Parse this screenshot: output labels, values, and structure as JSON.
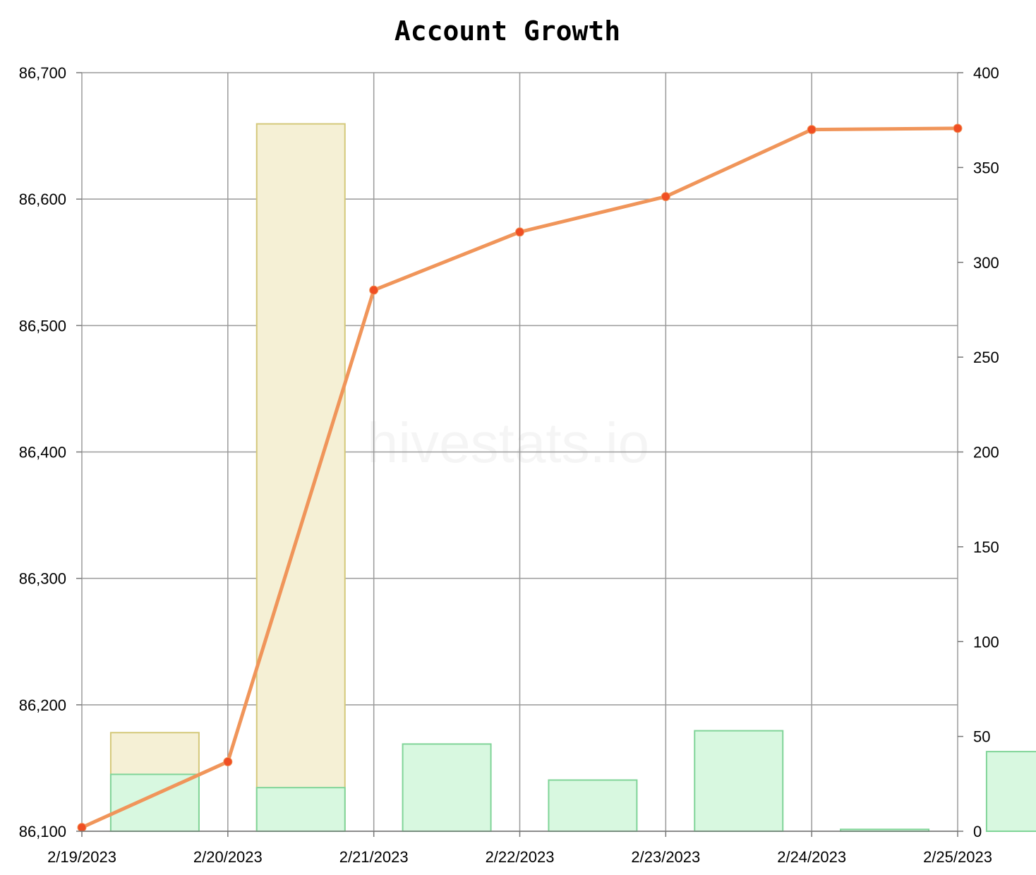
{
  "chart_data": {
    "type": "bar+line",
    "title": "Account Growth",
    "watermark": "hivestats.io",
    "categories": [
      "2/19/2023",
      "2/20/2023",
      "2/21/2023",
      "2/22/2023",
      "2/23/2023",
      "2/24/2023",
      "2/25/2023"
    ],
    "y_left": {
      "range": [
        86100,
        86700
      ],
      "ticks": [
        "86,100",
        "86,200",
        "86,300",
        "86,400",
        "86,500",
        "86,600",
        "86,700"
      ]
    },
    "y_right": {
      "range": [
        0,
        400
      ],
      "ticks": [
        "0",
        "50",
        "100",
        "150",
        "200",
        "250",
        "300",
        "350",
        "400"
      ]
    },
    "grid": true,
    "series": [
      {
        "kind": "line",
        "axis": "left",
        "color": "#f0955a",
        "marker_color": "#f04e23",
        "x": [
          "2/19/2023",
          "2/20/2023",
          "2/21/2023",
          "2/22/2023",
          "2/23/2023",
          "2/24/2023",
          "2/25/2023"
        ],
        "values": [
          86103,
          86155,
          86528,
          86574,
          86602,
          86655,
          86656
        ]
      },
      {
        "kind": "bar",
        "axis": "right",
        "fill": "#f5f0d5",
        "stroke": "#d4c87a",
        "x": [
          "2/19/2023",
          "2/20/2023"
        ],
        "values": [
          52,
          373
        ]
      },
      {
        "kind": "bar",
        "axis": "right",
        "fill": "#d8f8e0",
        "stroke": "#80d498",
        "x": [
          "2/19/2023",
          "2/20/2023",
          "2/21/2023",
          "2/22/2023",
          "2/23/2023",
          "2/24/2023",
          "2/25/2023"
        ],
        "values": [
          30,
          23,
          46,
          27,
          53,
          1,
          42
        ]
      }
    ]
  }
}
